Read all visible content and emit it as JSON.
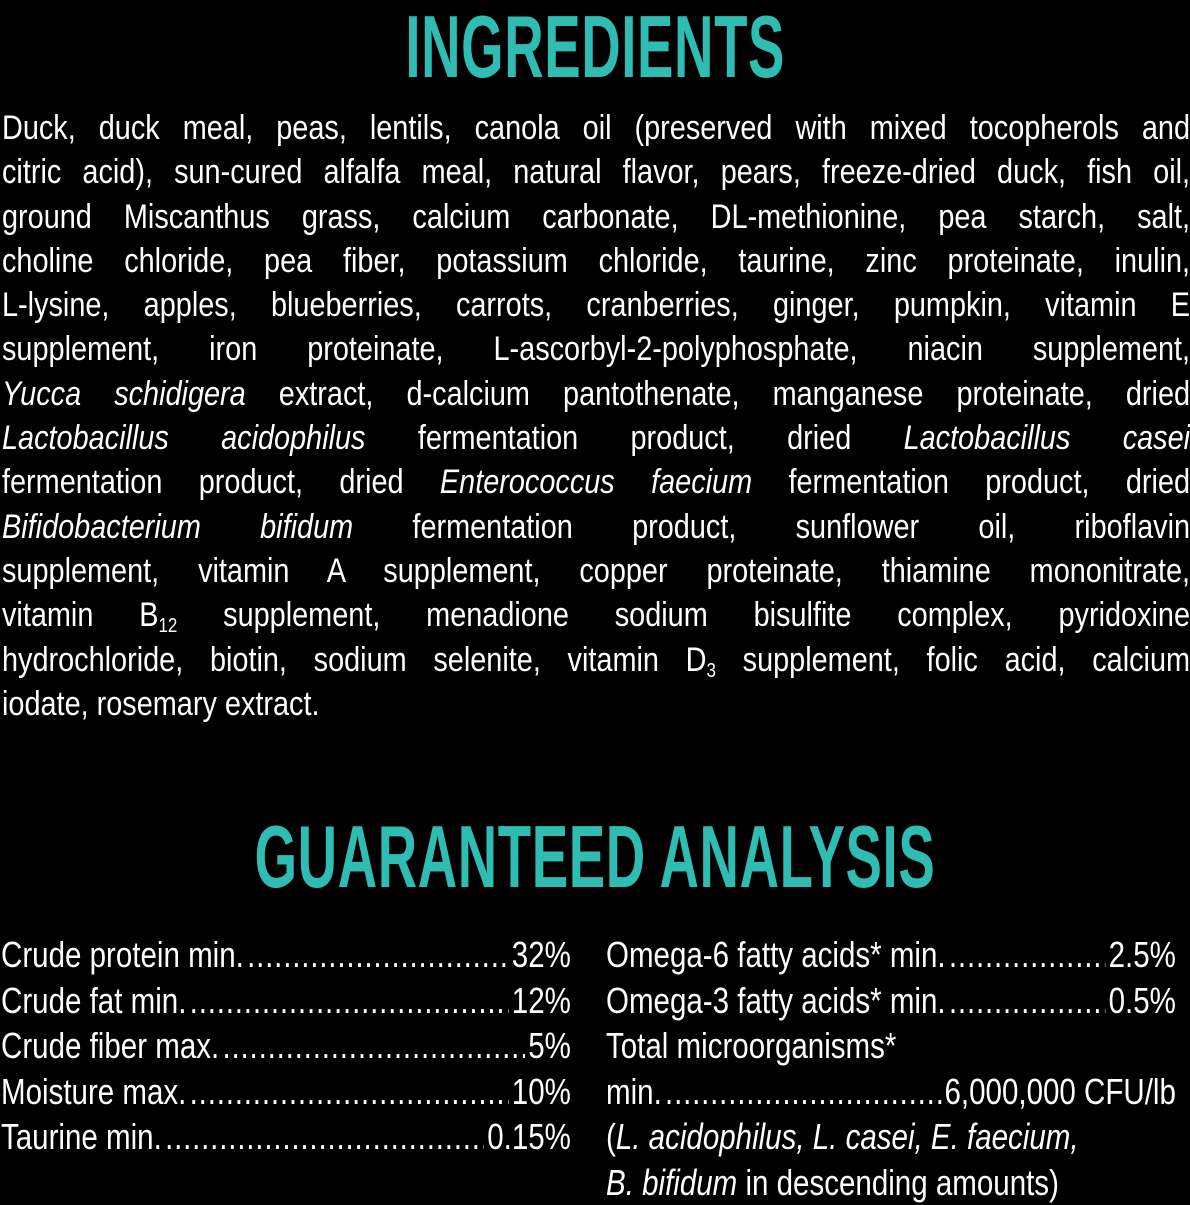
{
  "accent_color": "#2fbcb2",
  "ingredients": {
    "title": "INGREDIENTS",
    "lines": [
      [
        [
          "Duck, duck meal, peas, lentils, canola oil (preserved with mixed tocopherols and",
          ""
        ]
      ],
      [
        [
          "citric acid), sun-cured alfalfa meal, natural flavor, pears, freeze-dried duck, fish oil,",
          ""
        ]
      ],
      [
        [
          "ground Miscanthus grass, calcium carbonate, DL-methionine, pea starch, salt,",
          ""
        ]
      ],
      [
        [
          "choline chloride, pea fiber, potassium chloride, taurine, zinc proteinate, inulin,",
          ""
        ]
      ],
      [
        [
          "L-lysine, apples, blueberries, carrots, cranberries, ginger, pumpkin, vitamin E",
          ""
        ]
      ],
      [
        [
          "supplement, iron proteinate, L-ascorbyl-2-polyphosphate, niacin supplement,",
          ""
        ]
      ],
      [
        [
          "Yucca schidigera",
          "i"
        ],
        [
          " extract, d-calcium pantothenate, manganese proteinate, dried",
          ""
        ]
      ],
      [
        [
          "Lactobacillus acidophilus",
          "i"
        ],
        [
          " fermentation product, dried ",
          ""
        ],
        [
          "Lactobacillus casei",
          "i"
        ]
      ],
      [
        [
          "fermentation product, dried ",
          ""
        ],
        [
          "Enterococcus faecium",
          "i"
        ],
        [
          " fermentation product, dried",
          ""
        ]
      ],
      [
        [
          "Bifidobacterium bifidum",
          "i"
        ],
        [
          " fermentation product, sunflower oil, riboflavin",
          ""
        ]
      ],
      [
        [
          "supplement, vitamin A supplement, copper proteinate, thiamine mononitrate,",
          ""
        ]
      ],
      [
        [
          "vitamin B",
          ""
        ],
        [
          "12",
          "sub"
        ],
        [
          " supplement, menadione sodium bisulfite complex, pyridoxine",
          ""
        ]
      ],
      [
        [
          "hydrochloride, biotin, sodium selenite, vitamin D",
          ""
        ],
        [
          "3",
          "sub"
        ],
        [
          " supplement, folic acid, calcium",
          ""
        ]
      ],
      [
        [
          "iodate, rosemary extract.",
          ""
        ]
      ]
    ]
  },
  "analysis": {
    "title": "GUARANTEED ANALYSIS",
    "left": [
      {
        "label": "Crude protein min.",
        "value": "32%"
      },
      {
        "label": "Crude fat min.",
        "value": "12%"
      },
      {
        "label": "Crude fiber max.",
        "value": "5%"
      },
      {
        "label": "Moisture max.",
        "value": "10%"
      },
      {
        "label": "Taurine min.",
        "value": "0.15%"
      }
    ],
    "right": [
      {
        "label": "Omega-6 fatty acids* min.",
        "value": "2.5%"
      },
      {
        "label": "Omega-3 fatty acids* min.",
        "value": "0.5%"
      }
    ],
    "micro_label": "Total microorganisms*",
    "micro_min_label": "min.",
    "micro_value": "6,000,000 CFU/lb",
    "note_lines": [
      [
        [
          "(",
          ""
        ],
        [
          "L. acidophilus, L. casei, E. faecium,",
          "i"
        ]
      ],
      [
        [
          "B. bifidum",
          "i"
        ],
        [
          " in descending amounts)",
          ""
        ]
      ]
    ]
  }
}
